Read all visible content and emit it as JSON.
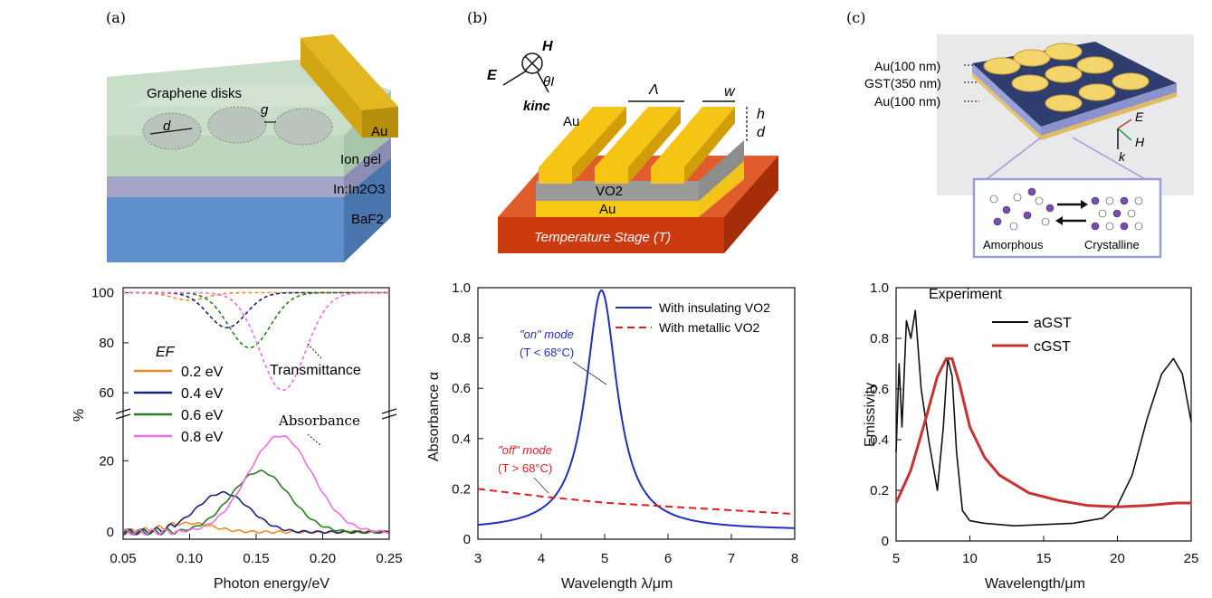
{
  "panels": {
    "a": {
      "label": "(a)",
      "schematic": {
        "graphene_disks": "Graphene disks",
        "d": "d",
        "g": "g",
        "au": "Au",
        "ion_gel": "Ion gel",
        "in2o3": "In:In2O3",
        "baf2": "BaF2"
      }
    },
    "b": {
      "label": "(b)",
      "schematic": {
        "H": "H",
        "E": "E",
        "theta": "θI",
        "k": "kinc",
        "Lambda": "Λ",
        "w": "w",
        "h": "h",
        "d": "d",
        "au_top": "Au",
        "vo2": "VO2",
        "au_bottom": "Au",
        "stage": "Temperature Stage (T)"
      }
    },
    "c": {
      "label": "(c)",
      "schematic": {
        "layer1": "Au(100 nm)",
        "layer2": "GST(350 nm)",
        "layer3": "Au(100 nm)",
        "E": "E",
        "H": "H",
        "k": "k",
        "amorphous": "Amorphous",
        "crystalline": "Crystalline"
      }
    }
  },
  "chart_data": [
    {
      "type": "line",
      "panel": "a",
      "xlabel": "Photon energy/eV",
      "ylabel": "%",
      "xlim": [
        0.05,
        0.25
      ],
      "xticks": [
        "0.05",
        "0.10",
        "0.15",
        "0.20",
        "0.25"
      ],
      "yticks_upper": [
        "100",
        "80",
        "60"
      ],
      "yticks_lower": [
        "20",
        "0"
      ],
      "legend_title": "EF",
      "annotations": [
        "Transmittance",
        "Absorbance"
      ],
      "series": [
        {
          "name": "0.2 eV",
          "color": "#f0892a",
          "transmittance_dip": {
            "center": 0.1,
            "min": 97
          },
          "absorbance_peak": {
            "center": 0.1,
            "max": 2.5
          }
        },
        {
          "name": "0.4 eV",
          "color": "#1a237e",
          "transmittance_dip": {
            "center": 0.128,
            "min": 86
          },
          "absorbance_peak": {
            "center": 0.125,
            "max": 11
          }
        },
        {
          "name": "0.6 eV",
          "color": "#2a7d22",
          "transmittance_dip": {
            "center": 0.145,
            "min": 78
          },
          "absorbance_peak": {
            "center": 0.153,
            "max": 17
          }
        },
        {
          "name": "0.8 eV",
          "color": "#ee6fe6",
          "transmittance_dip": {
            "center": 0.17,
            "min": 61
          },
          "absorbance_peak": {
            "center": 0.168,
            "max": 27
          }
        }
      ]
    },
    {
      "type": "line",
      "panel": "b",
      "xlabel": "Wavelength λ/μm",
      "ylabel": "Absorbance α",
      "xlim": [
        3,
        8
      ],
      "ylim": [
        0,
        1.0
      ],
      "xticks": [
        "3",
        "4",
        "5",
        "6",
        "7",
        "8"
      ],
      "yticks": [
        "0",
        "0.2",
        "0.4",
        "0.6",
        "0.8",
        "1.0"
      ],
      "annotations": [
        "\"on\" mode",
        "(T < 68°C)",
        "\"off\" mode",
        "(T > 68°C)"
      ],
      "series": [
        {
          "name": "With insulating VO2",
          "color": "#1f2fbf",
          "x": [
            3,
            3.5,
            4,
            4.3,
            4.6,
            4.8,
            4.95,
            5.1,
            5.3,
            5.6,
            6.0,
            6.5,
            7,
            7.5,
            8
          ],
          "y": [
            0.04,
            0.055,
            0.1,
            0.18,
            0.4,
            0.78,
            0.99,
            0.88,
            0.55,
            0.26,
            0.13,
            0.08,
            0.06,
            0.05,
            0.045
          ]
        },
        {
          "name": "With metallic VO2",
          "color": "#e02020",
          "x": [
            3,
            4,
            5,
            6,
            7,
            8
          ],
          "y": [
            0.2,
            0.17,
            0.145,
            0.13,
            0.115,
            0.1
          ]
        }
      ]
    },
    {
      "type": "line",
      "panel": "c",
      "title": "Experiment",
      "xlabel": "Wavelength/μm",
      "ylabel": "Emissivity",
      "xlim": [
        5,
        25
      ],
      "ylim": [
        0,
        1.0
      ],
      "xticks": [
        "5",
        "10",
        "15",
        "20",
        "25"
      ],
      "yticks": [
        "0",
        "0.2",
        "0.4",
        "0.6",
        "0.8",
        "1.0"
      ],
      "series": [
        {
          "name": "aGST",
          "color": "#111111",
          "x": [
            5,
            5.2,
            5.4,
            5.7,
            6.0,
            6.3,
            6.7,
            7.2,
            7.8,
            8.2,
            8.5,
            8.8,
            9.1,
            9.5,
            10,
            11,
            13,
            15,
            17,
            19,
            20,
            21,
            22,
            23,
            23.8,
            24.4,
            25
          ],
          "y": [
            0.35,
            0.7,
            0.45,
            0.87,
            0.8,
            0.91,
            0.6,
            0.4,
            0.2,
            0.45,
            0.72,
            0.65,
            0.35,
            0.12,
            0.08,
            0.07,
            0.06,
            0.065,
            0.07,
            0.09,
            0.14,
            0.26,
            0.48,
            0.66,
            0.72,
            0.66,
            0.47
          ]
        },
        {
          "name": "cGST",
          "color": "#c83232",
          "x": [
            5,
            6,
            7,
            7.8,
            8.4,
            8.8,
            9.3,
            10,
            11,
            12,
            14,
            16,
            18,
            20,
            22,
            24,
            25
          ],
          "y": [
            0.15,
            0.28,
            0.48,
            0.65,
            0.72,
            0.72,
            0.62,
            0.45,
            0.33,
            0.26,
            0.19,
            0.16,
            0.14,
            0.135,
            0.14,
            0.15,
            0.15
          ]
        }
      ]
    }
  ]
}
